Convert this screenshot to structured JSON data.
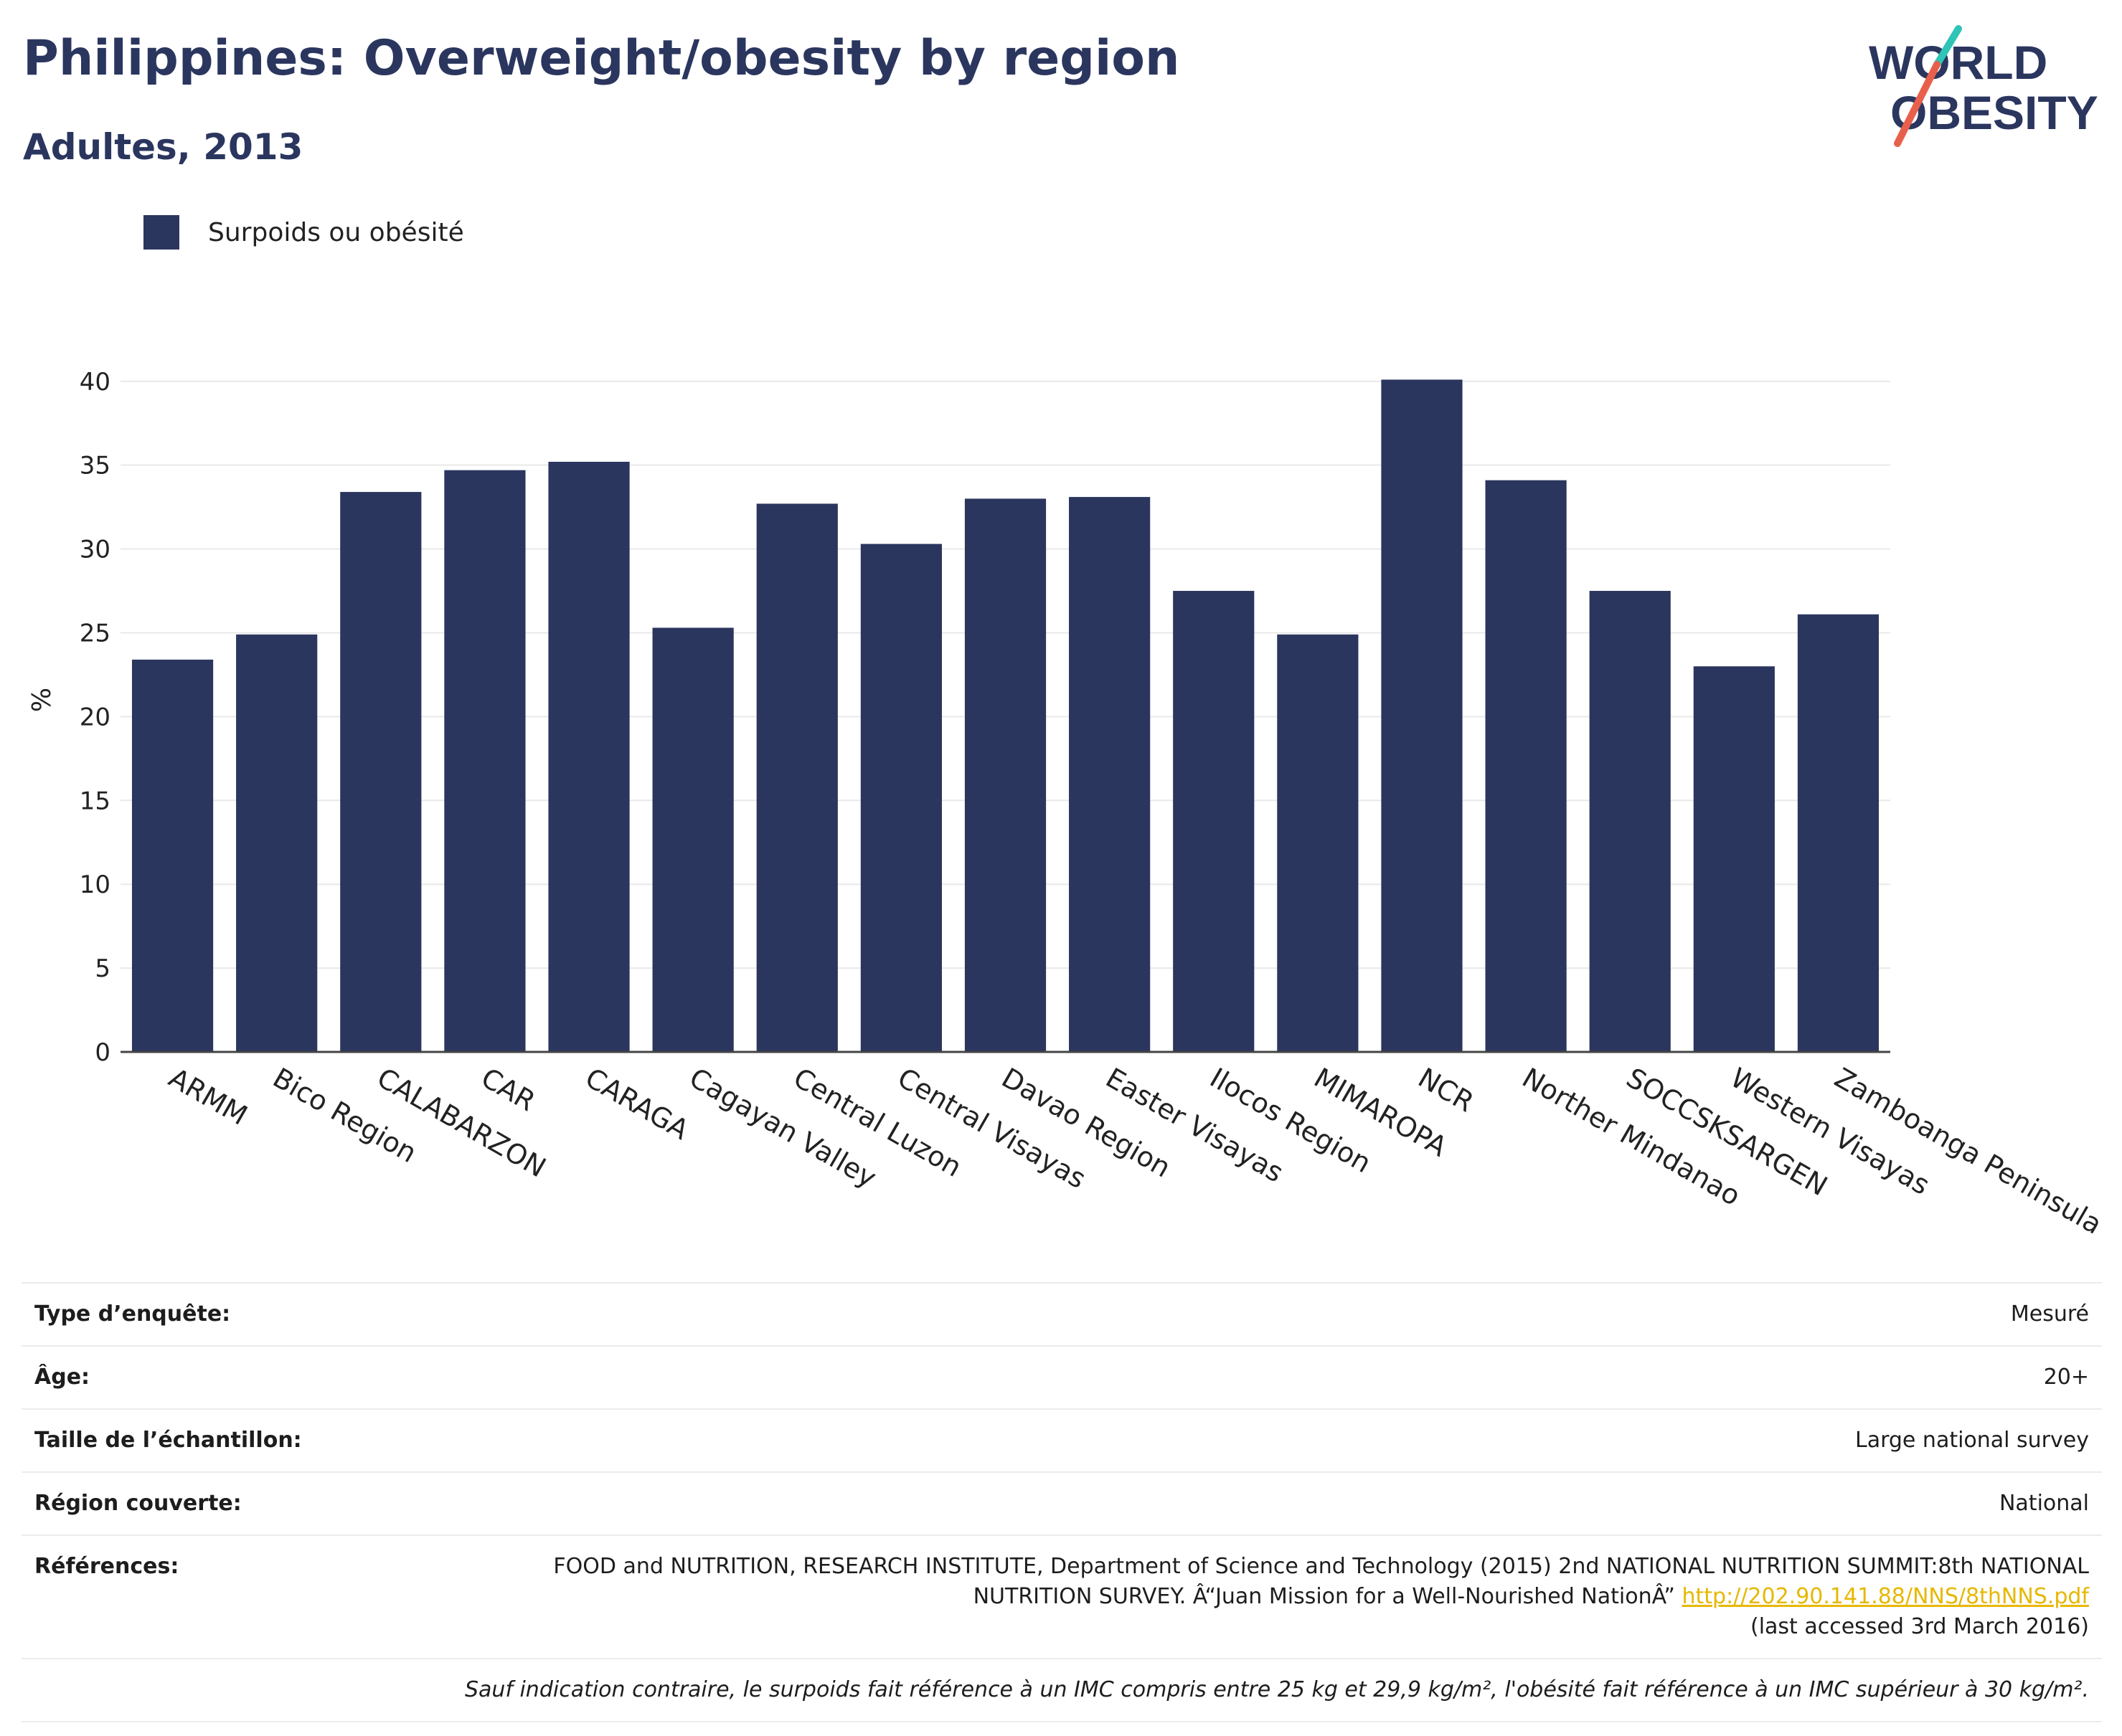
{
  "header": {
    "title": "Philippines: Overweight/obesity by region",
    "subtitle": "Adultes, 2013"
  },
  "logo": {
    "line1": "WORLD",
    "line2": "OBESITY",
    "accent_teal": "#2ec4b6",
    "accent_coral": "#e8604c",
    "text_color": "#2b365f"
  },
  "legend": {
    "label": "Surpoids ou obésité",
    "color": "#2b365f"
  },
  "chart_data": {
    "type": "bar",
    "title": "Philippines: Overweight/obesity by region",
    "subtitle": "Adultes, 2013",
    "ylabel": "%",
    "xlabel": "",
    "ylim": [
      0,
      42
    ],
    "yticks": [
      0,
      5,
      10,
      15,
      20,
      25,
      30,
      35,
      40
    ],
    "grid": true,
    "legend_position": "top-left",
    "bar_color": "#2b365f",
    "categories": [
      "ARMM",
      "Bico Region",
      "CALABARZON",
      "CAR",
      "CARAGA",
      "Cagayan Valley",
      "Central Luzon",
      "Central Visayas",
      "Davao Region",
      "Easter Visayas",
      "Ilocos Region",
      "MIMAROPA",
      "NCR",
      "Norther Mindanao",
      "SOCCSKSARGEN",
      "Western Visayas",
      "Zamboanga Peninsula"
    ],
    "series": [
      {
        "name": "Surpoids ou obésité",
        "values": [
          23.4,
          24.9,
          33.4,
          34.7,
          35.2,
          25.3,
          32.7,
          30.3,
          33.0,
          33.1,
          27.5,
          24.9,
          40.1,
          34.1,
          27.5,
          23.0,
          26.1
        ]
      }
    ]
  },
  "info": {
    "survey_type": {
      "label": "Type d’enquête:",
      "value": "Mesuré"
    },
    "age": {
      "label": "Âge:",
      "value": "20+"
    },
    "sample_size": {
      "label": "Taille de l’échantillon:",
      "value": "Large national survey"
    },
    "region": {
      "label": "Région couverte:",
      "value": "National"
    },
    "references": {
      "label": "Références:",
      "text": "FOOD and NUTRITION, RESEARCH INSTITUTE, Department of Science and Technology (2015) 2nd NATIONAL NUTRITION SUMMIT:8th NATIONAL NUTRITION SURVEY. Â“Juan Mission for a Well-Nourished NationÂ”",
      "link": "http://202.90.141.88/NNS/8thNNS.pdf",
      "accessed": "(last accessed 3rd March 2016)"
    },
    "footnote": "Sauf indication contraire, le surpoids fait référence à un IMC compris entre 25 kg et 29,9 kg/m², l'obésité fait référence à un IMC supérieur à 30 kg/m²."
  }
}
